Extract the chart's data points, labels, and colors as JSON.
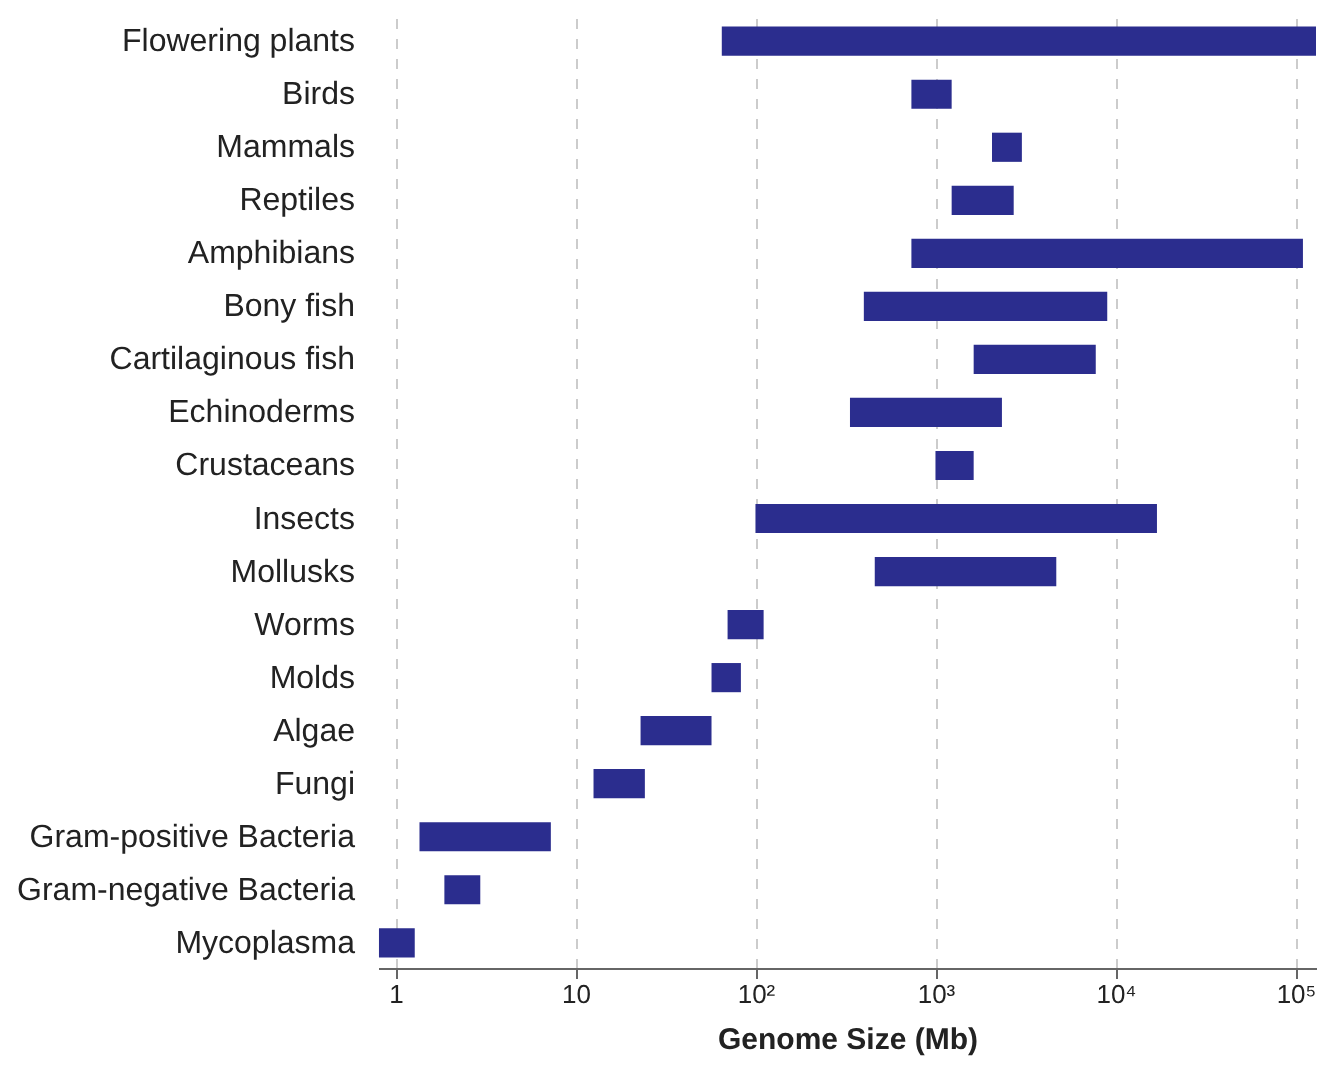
{
  "chart_data": {
    "type": "bar",
    "orientation": "horizontal",
    "xlabel": "Genome Size (Mb)",
    "log": "x",
    "categories": [
      "Flowering plants",
      "Birds",
      "Mammals",
      "Reptiles",
      "Amphibians",
      "Bony fish",
      "Cartilaginous fish",
      "Echinoderms",
      "Crustaceans",
      "Insects",
      "Mollusks",
      "Worms",
      "Molds",
      "Algae",
      "Fungi",
      "Gram-positive Bacteria",
      "Gram-negative Bacteria",
      "Mycoplasma"
    ],
    "base": [
      65,
      735,
      2060,
      1230,
      735,
      400,
      1630,
      335,
      1000,
      100,
      460,
      70,
      57,
      23,
      12.6,
      1.36,
      1.87,
      0.81
    ],
    "values": [
      129935,
      495,
      960,
      1490,
      109265,
      8600,
      6140,
      2005,
      630,
      16900,
      4230,
      41,
      26,
      34,
      11.7,
      5.94,
      1.09,
      0.47
    ],
    "color": "#2b2d8e",
    "xlim": [
      0.8,
      130000
    ],
    "xticks": [
      1,
      10,
      {
        "value": 100,
        "label": "10²"
      },
      {
        "value": 1000,
        "label": "10³"
      },
      {
        "value": 10000,
        "label": "10⁴"
      },
      {
        "value": 100000,
        "label": "10⁵"
      }
    ],
    "grid": "x"
  }
}
